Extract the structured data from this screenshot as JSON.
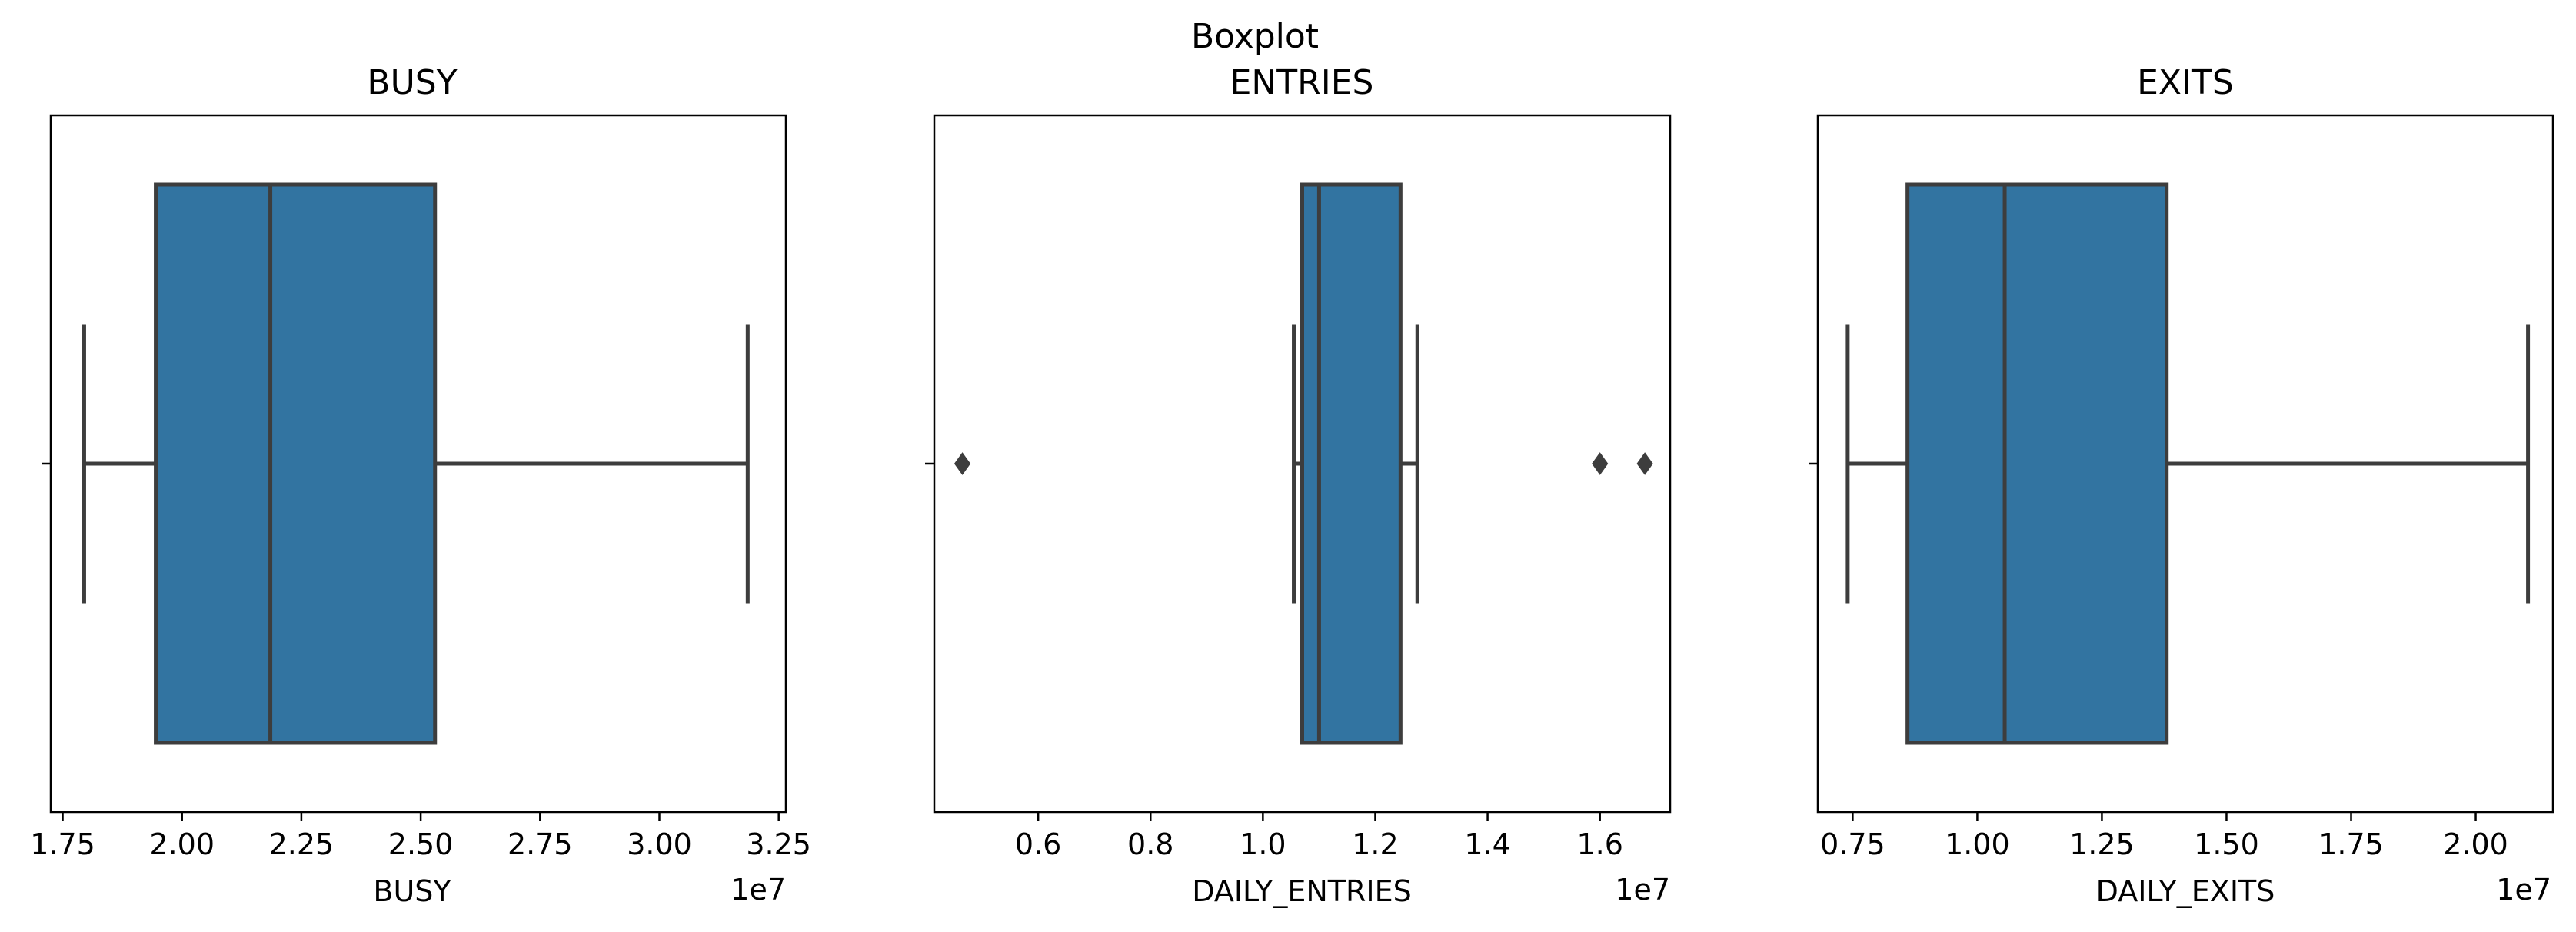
{
  "suptitle": "Boxplot",
  "colors": {
    "box_fill": "#3274a1",
    "line": "#3d3d3d",
    "axes": "#000000"
  },
  "chart_data": [
    {
      "type": "boxplot",
      "title": "BUSY",
      "xlabel": "BUSY",
      "offset_text": "1e7",
      "xlim": [
        1.725,
        3.265
      ],
      "ticks": [
        1.75,
        2.0,
        2.25,
        2.5,
        2.75,
        3.0,
        3.25
      ],
      "tick_labels": [
        "1.75",
        "2.00",
        "2.25",
        "2.50",
        "2.75",
        "3.00",
        "3.25"
      ],
      "stats": {
        "whisker_low": 1.795,
        "q1": 1.945,
        "median": 2.185,
        "q3": 2.53,
        "whisker_high": 3.185
      },
      "outliers": []
    },
    {
      "type": "boxplot",
      "title": "ENTRIES",
      "xlabel": "DAILY_ENTRIES",
      "offset_text": "1e7",
      "xlim": [
        0.415,
        1.725
      ],
      "ticks": [
        0.6,
        0.8,
        1.0,
        1.2,
        1.4,
        1.6
      ],
      "tick_labels": [
        "0.6",
        "0.8",
        "1.0",
        "1.2",
        "1.4",
        "1.6"
      ],
      "stats": {
        "whisker_low": 1.055,
        "q1": 1.07,
        "median": 1.1,
        "q3": 1.245,
        "whisker_high": 1.275
      },
      "outliers": [
        0.465,
        1.6,
        1.68
      ]
    },
    {
      "type": "boxplot",
      "title": "EXITS",
      "xlabel": "DAILY_EXITS",
      "offset_text": "1e7",
      "xlim": [
        0.68,
        2.155
      ],
      "ticks": [
        0.75,
        1.0,
        1.25,
        1.5,
        1.75,
        2.0
      ],
      "tick_labels": [
        "0.75",
        "1.00",
        "1.25",
        "1.50",
        "1.75",
        "2.00"
      ],
      "stats": {
        "whisker_low": 0.74,
        "q1": 0.86,
        "median": 1.055,
        "q3": 1.38,
        "whisker_high": 2.105
      },
      "outliers": []
    }
  ]
}
